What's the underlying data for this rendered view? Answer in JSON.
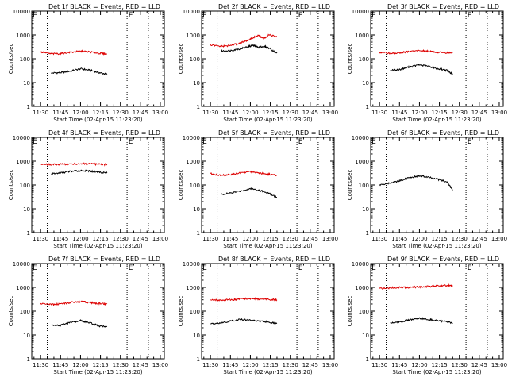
{
  "figure": {
    "common": {
      "xlabel": "Start Time (02-Apr-15 11:23:20)",
      "ylabel": "Counts/sec",
      "x_tick_labels": [
        "11:30",
        "11:45",
        "12:00",
        "12:15",
        "12:30",
        "12:45",
        "13:00"
      ],
      "y_tick_labels": [
        "1",
        "10",
        "100",
        "1000",
        "10000"
      ],
      "marker_text": "E"
    },
    "panels": [
      {
        "title": "Det 1f BLACK = Events, RED = LLD"
      },
      {
        "title": "Det 2f BLACK = Events, RED = LLD"
      },
      {
        "title": "Det 3f BLACK = Events, RED = LLD"
      },
      {
        "title": "Det 4f BLACK = Events, RED = LLD"
      },
      {
        "title": "Det 5f BLACK = Events, RED = LLD"
      },
      {
        "title": "Det 6f BLACK = Events, RED = LLD"
      },
      {
        "title": "Det 7f BLACK = Events, RED = LLD"
      },
      {
        "title": "Det 8f BLACK = Events, RED = LLD"
      },
      {
        "title": "Det 9f BLACK = Events, RED = LLD"
      }
    ]
  },
  "chart_data": [
    {
      "type": "line",
      "title": "Det 1f BLACK = Events, RED = LLD",
      "xlabel": "Start Time (02-Apr-15 11:23:20)",
      "ylabel": "Counts/sec",
      "y_scale": "log",
      "ylim": [
        1,
        10000
      ],
      "xlim": [
        "11:23:20",
        "13:03"
      ],
      "x_ticks": [
        "11:30",
        "11:45",
        "12:00",
        "12:15",
        "12:30",
        "12:45",
        "13:00"
      ],
      "vlines": [
        "11:35",
        "12:35",
        "12:51"
      ],
      "markers": [
        {
          "x": "11:24",
          "text": "E"
        },
        {
          "x": "12:36",
          "text": "E"
        }
      ],
      "series": [
        {
          "color": "#000000",
          "x": [
            "11:38",
            "11:45",
            "11:52",
            "12:00",
            "12:07",
            "12:14",
            "12:20"
          ],
          "values": [
            25,
            26,
            30,
            38,
            33,
            26,
            22
          ]
        },
        {
          "color": "#dd0000",
          "x": [
            "11:30",
            "11:38",
            "11:45",
            "11:52",
            "12:00",
            "12:07",
            "12:14",
            "12:20"
          ],
          "values": [
            190,
            160,
            165,
            185,
            205,
            195,
            170,
            160
          ]
        }
      ]
    },
    {
      "type": "line",
      "title": "Det 2f BLACK = Events, RED = LLD",
      "xlabel": "Start Time (02-Apr-15 11:23:20)",
      "ylabel": "Counts/sec",
      "y_scale": "log",
      "ylim": [
        1,
        10000
      ],
      "xlim": [
        "11:23:20",
        "13:03"
      ],
      "x_ticks": [
        "11:30",
        "11:45",
        "12:00",
        "12:15",
        "12:30",
        "12:45",
        "13:00"
      ],
      "vlines": [
        "11:35",
        "12:35",
        "12:51"
      ],
      "markers": [
        {
          "x": "11:24",
          "text": "E"
        },
        {
          "x": "12:36",
          "text": "E"
        }
      ],
      "series": [
        {
          "color": "#000000",
          "x": [
            "11:38",
            "11:45",
            "11:52",
            "11:58",
            "12:02",
            "12:06",
            "12:10",
            "12:14",
            "12:20"
          ],
          "values": [
            210,
            220,
            260,
            320,
            360,
            300,
            330,
            280,
            170
          ]
        },
        {
          "color": "#dd0000",
          "x": [
            "11:30",
            "11:38",
            "11:45",
            "11:52",
            "11:58",
            "12:02",
            "12:06",
            "12:10",
            "12:14",
            "12:20"
          ],
          "values": [
            370,
            330,
            360,
            450,
            600,
            750,
            950,
            700,
            1050,
            800
          ]
        }
      ]
    },
    {
      "type": "line",
      "title": "Det 3f BLACK = Events, RED = LLD",
      "xlabel": "Start Time (02-Apr-15 11:23:20)",
      "ylabel": "Counts/sec",
      "y_scale": "log",
      "ylim": [
        1,
        10000
      ],
      "xlim": [
        "11:23:20",
        "13:03"
      ],
      "x_ticks": [
        "11:30",
        "11:45",
        "12:00",
        "12:15",
        "12:30",
        "12:45",
        "13:00"
      ],
      "vlines": [
        "11:35",
        "12:35",
        "12:51"
      ],
      "markers": [
        {
          "x": "11:24",
          "text": "E"
        },
        {
          "x": "12:36",
          "text": "E"
        }
      ],
      "series": [
        {
          "color": "#000000",
          "x": [
            "11:38",
            "11:45",
            "11:52",
            "12:00",
            "12:07",
            "12:14",
            "12:21",
            "12:25"
          ],
          "values": [
            32,
            35,
            45,
            55,
            48,
            38,
            32,
            22
          ]
        },
        {
          "color": "#dd0000",
          "x": [
            "11:30",
            "11:38",
            "11:45",
            "11:52",
            "12:00",
            "12:07",
            "12:14",
            "12:21",
            "12:25"
          ],
          "values": [
            185,
            170,
            175,
            200,
            220,
            205,
            185,
            180,
            175
          ]
        }
      ]
    },
    {
      "type": "line",
      "title": "Det 4f BLACK = Events, RED = LLD",
      "xlabel": "Start Time (02-Apr-15 11:23:20)",
      "ylabel": "Counts/sec",
      "y_scale": "log",
      "ylim": [
        1,
        10000
      ],
      "xlim": [
        "11:23:20",
        "13:03"
      ],
      "x_ticks": [
        "11:30",
        "11:45",
        "12:00",
        "12:15",
        "12:30",
        "12:45",
        "13:00"
      ],
      "vlines": [
        "11:35",
        "12:35",
        "12:51"
      ],
      "markers": [
        {
          "x": "11:24",
          "text": "E"
        },
        {
          "x": "12:36",
          "text": "E"
        }
      ],
      "series": [
        {
          "color": "#000000",
          "x": [
            "11:38",
            "11:45",
            "11:52",
            "12:00",
            "12:07",
            "12:14",
            "12:20"
          ],
          "values": [
            290,
            320,
            370,
            400,
            380,
            350,
            320
          ]
        },
        {
          "color": "#dd0000",
          "x": [
            "11:30",
            "11:38",
            "11:45",
            "11:52",
            "12:00",
            "12:07",
            "12:14",
            "12:20"
          ],
          "values": [
            750,
            720,
            740,
            760,
            780,
            760,
            740,
            720
          ]
        }
      ]
    },
    {
      "type": "line",
      "title": "Det 5f BLACK = Events, RED = LLD",
      "xlabel": "Start Time (02-Apr-15 11:23:20)",
      "ylabel": "Counts/sec",
      "y_scale": "log",
      "ylim": [
        1,
        10000
      ],
      "xlim": [
        "11:23:20",
        "13:03"
      ],
      "x_ticks": [
        "11:30",
        "11:45",
        "12:00",
        "12:15",
        "12:30",
        "12:45",
        "13:00"
      ],
      "vlines": [
        "11:35",
        "12:35",
        "12:51"
      ],
      "markers": [
        {
          "x": "11:24",
          "text": "E"
        },
        {
          "x": "12:36",
          "text": "E"
        }
      ],
      "series": [
        {
          "color": "#000000",
          "x": [
            "11:38",
            "11:45",
            "11:52",
            "12:00",
            "12:07",
            "12:14",
            "12:20"
          ],
          "values": [
            40,
            45,
            55,
            70,
            60,
            45,
            30
          ]
        },
        {
          "color": "#dd0000",
          "x": [
            "11:30",
            "11:38",
            "11:45",
            "11:52",
            "12:00",
            "12:07",
            "12:14",
            "12:20"
          ],
          "values": [
            300,
            250,
            270,
            320,
            360,
            320,
            280,
            250
          ]
        }
      ]
    },
    {
      "type": "line",
      "title": "Det 6f BLACK = Events, RED = LLD",
      "xlabel": "Start Time (02-Apr-15 11:23:20)",
      "ylabel": "Counts/sec",
      "y_scale": "log",
      "ylim": [
        1,
        10000
      ],
      "xlim": [
        "11:23:20",
        "13:03"
      ],
      "x_ticks": [
        "11:30",
        "11:45",
        "12:00",
        "12:15",
        "12:30",
        "12:45",
        "13:00"
      ],
      "vlines": [
        "11:35",
        "12:35",
        "12:51"
      ],
      "markers": [
        {
          "x": "11:24",
          "text": "E"
        },
        {
          "x": "12:36",
          "text": "E"
        }
      ],
      "series": [
        {
          "color": "#000000",
          "x": [
            "11:30",
            "11:38",
            "11:45",
            "11:52",
            "12:00",
            "12:07",
            "12:14",
            "12:21",
            "12:25"
          ],
          "values": [
            100,
            120,
            150,
            200,
            240,
            210,
            170,
            130,
            60
          ]
        }
      ]
    },
    {
      "type": "line",
      "title": "Det 7f BLACK = Events, RED = LLD",
      "xlabel": "Start Time (02-Apr-15 11:23:20)",
      "ylabel": "Counts/sec",
      "y_scale": "log",
      "ylim": [
        1,
        10000
      ],
      "xlim": [
        "11:23:20",
        "13:03"
      ],
      "x_ticks": [
        "11:30",
        "11:45",
        "12:00",
        "12:15",
        "12:30",
        "12:45",
        "13:00"
      ],
      "vlines": [
        "11:35",
        "12:35",
        "12:51"
      ],
      "markers": [
        {
          "x": "11:24",
          "text": "E"
        },
        {
          "x": "12:36",
          "text": "E"
        }
      ],
      "series": [
        {
          "color": "#000000",
          "x": [
            "11:38",
            "11:45",
            "11:52",
            "12:00",
            "12:07",
            "12:14",
            "12:20"
          ],
          "values": [
            25,
            26,
            32,
            40,
            32,
            24,
            22
          ]
        },
        {
          "color": "#dd0000",
          "x": [
            "11:30",
            "11:38",
            "11:45",
            "11:52",
            "12:00",
            "12:07",
            "12:14",
            "12:20"
          ],
          "values": [
            210,
            190,
            200,
            230,
            250,
            230,
            210,
            200
          ]
        }
      ]
    },
    {
      "type": "line",
      "title": "Det 8f BLACK = Events, RED = LLD",
      "xlabel": "Start Time (02-Apr-15 11:23:20)",
      "ylabel": "Counts/sec",
      "y_scale": "log",
      "ylim": [
        1,
        10000
      ],
      "xlim": [
        "11:23:20",
        "13:03"
      ],
      "x_ticks": [
        "11:30",
        "11:45",
        "12:00",
        "12:15",
        "12:30",
        "12:45",
        "13:00"
      ],
      "vlines": [
        "11:35",
        "12:35",
        "12:51"
      ],
      "markers": [
        {
          "x": "11:24",
          "text": "E"
        },
        {
          "x": "12:36",
          "text": "E"
        }
      ],
      "series": [
        {
          "color": "#000000",
          "x": [
            "11:30",
            "11:38",
            "11:45",
            "11:52",
            "12:00",
            "12:07",
            "12:14",
            "12:20"
          ],
          "values": [
            30,
            32,
            38,
            45,
            42,
            38,
            35,
            30
          ]
        },
        {
          "color": "#dd0000",
          "x": [
            "11:30",
            "11:38",
            "11:45",
            "11:52",
            "12:00",
            "12:07",
            "12:14",
            "12:20"
          ],
          "values": [
            310,
            290,
            300,
            320,
            340,
            320,
            310,
            300
          ]
        }
      ]
    },
    {
      "type": "line",
      "title": "Det 9f BLACK = Events, RED = LLD",
      "xlabel": "Start Time (02-Apr-15 11:23:20)",
      "ylabel": "Counts/sec",
      "y_scale": "log",
      "ylim": [
        1,
        10000
      ],
      "xlim": [
        "11:23:20",
        "13:03"
      ],
      "x_ticks": [
        "11:30",
        "11:45",
        "12:00",
        "12:15",
        "12:30",
        "12:45",
        "13:00"
      ],
      "vlines": [
        "11:35",
        "12:35",
        "12:51"
      ],
      "markers": [
        {
          "x": "11:24",
          "text": "E"
        },
        {
          "x": "12:36",
          "text": "E"
        }
      ],
      "series": [
        {
          "color": "#000000",
          "x": [
            "11:38",
            "11:45",
            "11:52",
            "12:00",
            "12:07",
            "12:14",
            "12:21",
            "12:25"
          ],
          "values": [
            32,
            35,
            42,
            50,
            45,
            40,
            35,
            30
          ]
        },
        {
          "color": "#dd0000",
          "x": [
            "11:30",
            "11:38",
            "11:45",
            "11:52",
            "12:00",
            "12:07",
            "12:14",
            "12:21",
            "12:25"
          ],
          "values": [
            900,
            950,
            1000,
            1000,
            1050,
            1100,
            1150,
            1200,
            1200
          ]
        }
      ]
    }
  ]
}
